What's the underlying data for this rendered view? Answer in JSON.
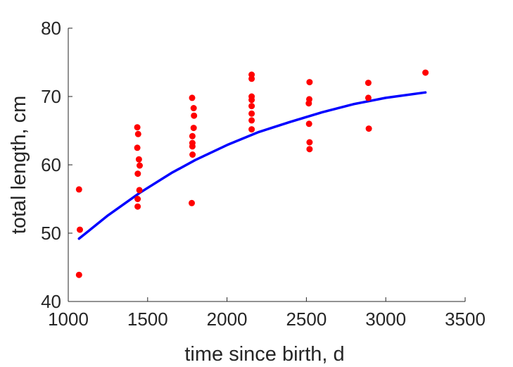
{
  "chart_data": {
    "type": "scatter",
    "xlabel": "time since birth, d",
    "ylabel": "total length, cm",
    "xlim": [
      1000,
      3500
    ],
    "ylim": [
      40,
      80
    ],
    "xticks": [
      1000,
      1500,
      2000,
      2500,
      3000,
      3500
    ],
    "yticks": [
      40,
      50,
      60,
      70,
      80
    ],
    "grid": false,
    "legend": "none",
    "colors": {
      "points": "#ff0000",
      "fit": "#0000ff",
      "axis": "#262626"
    },
    "series": [
      {
        "kind": "scatter",
        "points": [
          {
            "x": 1068,
            "y": 56.4
          },
          {
            "x": 1073,
            "y": 50.5
          },
          {
            "x": 1068,
            "y": 43.9
          },
          {
            "x": 1435,
            "y": 65.5
          },
          {
            "x": 1440,
            "y": 64.5
          },
          {
            "x": 1435,
            "y": 62.5
          },
          {
            "x": 1445,
            "y": 60.8
          },
          {
            "x": 1450,
            "y": 59.9
          },
          {
            "x": 1438,
            "y": 58.7
          },
          {
            "x": 1448,
            "y": 56.3
          },
          {
            "x": 1437,
            "y": 55.0
          },
          {
            "x": 1437,
            "y": 53.9
          },
          {
            "x": 1780,
            "y": 69.8
          },
          {
            "x": 1790,
            "y": 68.3
          },
          {
            "x": 1792,
            "y": 67.2
          },
          {
            "x": 1790,
            "y": 65.4
          },
          {
            "x": 1782,
            "y": 64.2
          },
          {
            "x": 1782,
            "y": 63.2
          },
          {
            "x": 1782,
            "y": 62.7
          },
          {
            "x": 1783,
            "y": 61.5
          },
          {
            "x": 1778,
            "y": 54.4
          },
          {
            "x": 2155,
            "y": 73.2
          },
          {
            "x": 2155,
            "y": 72.6
          },
          {
            "x": 2155,
            "y": 70.0
          },
          {
            "x": 2155,
            "y": 69.5
          },
          {
            "x": 2155,
            "y": 68.6
          },
          {
            "x": 2155,
            "y": 67.5
          },
          {
            "x": 2155,
            "y": 66.5
          },
          {
            "x": 2155,
            "y": 65.2
          },
          {
            "x": 2520,
            "y": 72.1
          },
          {
            "x": 2518,
            "y": 69.6
          },
          {
            "x": 2515,
            "y": 69.0
          },
          {
            "x": 2517,
            "y": 66.0
          },
          {
            "x": 2520,
            "y": 63.3
          },
          {
            "x": 2520,
            "y": 62.3
          },
          {
            "x": 2890,
            "y": 72.0
          },
          {
            "x": 2890,
            "y": 69.8
          },
          {
            "x": 2893,
            "y": 65.3
          },
          {
            "x": 3250,
            "y": 73.5
          }
        ]
      },
      {
        "kind": "line",
        "points": [
          {
            "x": 1068,
            "y": 49.2
          },
          {
            "x": 1250,
            "y": 52.6
          },
          {
            "x": 1450,
            "y": 55.9
          },
          {
            "x": 1650,
            "y": 58.8
          },
          {
            "x": 1800,
            "y": 60.7
          },
          {
            "x": 2000,
            "y": 62.9
          },
          {
            "x": 2200,
            "y": 64.8
          },
          {
            "x": 2400,
            "y": 66.3
          },
          {
            "x": 2600,
            "y": 67.7
          },
          {
            "x": 2800,
            "y": 68.9
          },
          {
            "x": 3000,
            "y": 69.8
          },
          {
            "x": 3250,
            "y": 70.6
          }
        ]
      }
    ]
  }
}
